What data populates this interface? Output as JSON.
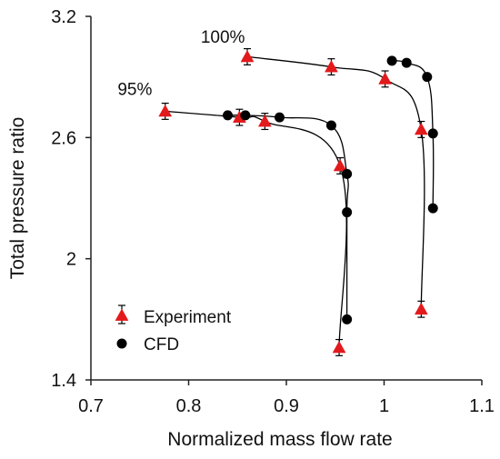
{
  "chart_data": {
    "type": "scatter",
    "title": "",
    "xlabel": "Normalized mass flow rate",
    "ylabel": "Total pressure ratio",
    "xlim": [
      0.7,
      1.1
    ],
    "ylim": [
      1.4,
      3.2
    ],
    "xticks": [
      "0.7",
      "0.8",
      "0.9",
      "1",
      "1.1"
    ],
    "yticks": [
      "1.4",
      "2",
      "2.6",
      "3.2"
    ],
    "grid": false,
    "legend": "bottom-left",
    "annotations": [
      {
        "text": "100%",
        "x": 0.835,
        "y": 3.07
      },
      {
        "text": "95%",
        "x": 0.745,
        "y": 2.81
      }
    ],
    "series": [
      {
        "name": "Experiment",
        "marker": "triangle",
        "color": "#e31a1c",
        "error_bar": 0.04,
        "groups": [
          {
            "line": "95%",
            "points": [
              [
                0.776,
                2.73
              ],
              [
                0.852,
                2.7
              ],
              [
                0.878,
                2.68
              ],
              [
                0.955,
                2.46
              ],
              [
                0.954,
                1.56
              ]
            ]
          },
          {
            "line": "100%",
            "points": [
              [
                0.86,
                3.0
              ],
              [
                0.946,
                2.95
              ],
              [
                1.001,
                2.89
              ],
              [
                1.038,
                2.64
              ],
              [
                1.038,
                1.75
              ]
            ]
          }
        ]
      },
      {
        "name": "CFD",
        "marker": "circle",
        "color": "#000000",
        "groups": [
          {
            "line": "95%",
            "points": [
              [
                0.84,
                2.71
              ],
              [
                0.858,
                2.71
              ],
              [
                0.893,
                2.7
              ],
              [
                0.946,
                2.66
              ],
              [
                0.962,
                2.42
              ],
              [
                0.962,
                2.23
              ],
              [
                0.962,
                1.7
              ]
            ]
          },
          {
            "line": "100%",
            "points": [
              [
                1.008,
                2.98
              ],
              [
                1.023,
                2.97
              ],
              [
                1.044,
                2.9
              ],
              [
                1.05,
                2.62
              ],
              [
                1.05,
                2.25
              ]
            ]
          }
        ]
      }
    ]
  }
}
